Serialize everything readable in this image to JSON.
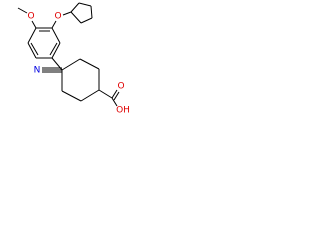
{
  "atoms": [
    {
      "label": "O"
    },
    {
      "label": "O"
    },
    {
      "label": "N"
    },
    {
      "label": "O"
    },
    {
      "label": "OH"
    }
  ]
}
